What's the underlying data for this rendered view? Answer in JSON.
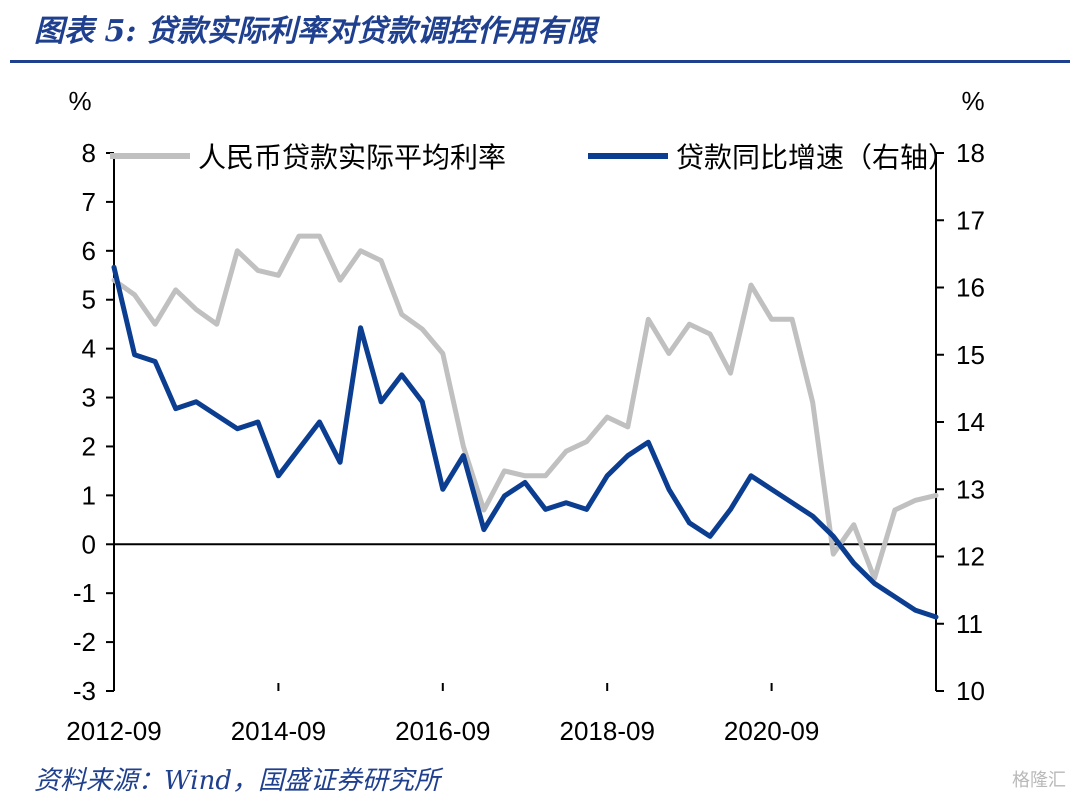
{
  "figure": {
    "title": "图表 5:  贷款实际利率对贷款调控作用有限",
    "source": "资料来源：Wind，国盛证券研究所",
    "watermark": "格隆汇"
  },
  "chart_data": {
    "type": "line",
    "left_unit": "%",
    "right_unit": "%",
    "left_ylim": [
      -3,
      8
    ],
    "right_ylim": [
      10,
      18
    ],
    "left_ticks": [
      "8",
      "7",
      "6",
      "5",
      "4",
      "3",
      "2",
      "1",
      "0",
      "-1",
      "-2",
      "-3"
    ],
    "right_ticks": [
      "18",
      "17",
      "16",
      "15",
      "14",
      "13",
      "12",
      "11",
      "10"
    ],
    "x_tick_labels": [
      "2012-09",
      "2014-09",
      "2016-09",
      "2018-09",
      "2020-09"
    ],
    "x": [
      "2012-09",
      "2012-12",
      "2013-03",
      "2013-06",
      "2013-09",
      "2013-12",
      "2014-03",
      "2014-06",
      "2014-09",
      "2014-12",
      "2015-03",
      "2015-06",
      "2015-09",
      "2015-12",
      "2016-03",
      "2016-06",
      "2016-09",
      "2016-12",
      "2017-03",
      "2017-06",
      "2017-09",
      "2017-12",
      "2018-03",
      "2018-06",
      "2018-09",
      "2018-12",
      "2019-03",
      "2019-06",
      "2019-09",
      "2019-12",
      "2020-03",
      "2020-06",
      "2020-09",
      "2020-12",
      "2021-03",
      "2021-06",
      "2021-09",
      "2021-12",
      "2022-03",
      "2022-06",
      "2022-09"
    ],
    "series": [
      {
        "name": "人民币贷款实际平均利率",
        "axis": "left",
        "color": "#c0c0c0",
        "values": [
          5.4,
          5.1,
          4.5,
          5.2,
          4.8,
          4.5,
          6.0,
          5.6,
          5.5,
          6.3,
          6.3,
          5.4,
          6.0,
          5.8,
          4.7,
          4.4,
          3.9,
          2.0,
          0.7,
          1.5,
          1.4,
          1.4,
          1.9,
          2.1,
          2.6,
          2.4,
          4.6,
          3.9,
          4.5,
          4.3,
          3.5,
          5.3,
          4.6,
          4.6,
          2.9,
          -0.2,
          0.4,
          -0.7,
          0.7,
          0.9,
          1.0
        ]
      },
      {
        "name": "贷款同比增速（右轴）",
        "axis": "right",
        "color": "#0b3d91",
        "values": [
          16.3,
          15.0,
          14.9,
          14.2,
          14.3,
          14.1,
          13.9,
          14.0,
          13.2,
          13.6,
          14.0,
          13.4,
          15.4,
          14.3,
          14.7,
          14.3,
          13.0,
          13.5,
          12.4,
          12.9,
          13.1,
          12.7,
          12.8,
          12.7,
          13.2,
          13.5,
          13.7,
          13.0,
          12.5,
          12.3,
          12.7,
          13.2,
          13.0,
          12.8,
          12.6,
          12.3,
          11.9,
          11.6,
          11.4,
          11.2,
          11.1
        ]
      }
    ],
    "legend_position": "top"
  }
}
